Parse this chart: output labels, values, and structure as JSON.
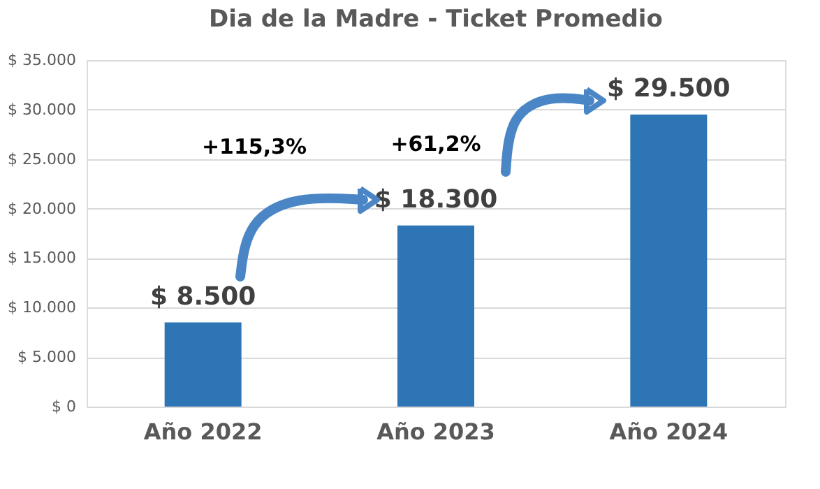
{
  "chart_data": {
    "type": "bar",
    "title": "Dia de la Madre - Ticket Promedio",
    "categories": [
      "Año 2022",
      "Año 2023",
      "Año 2024"
    ],
    "values": [
      8500,
      18300,
      29500
    ],
    "color": "#2e75b6",
    "value_labels": [
      "$ 8.500",
      "$ 18.300",
      "$ 29.500"
    ],
    "ylim": [
      0,
      35000
    ],
    "yticks": [
      {
        "value": 0,
        "label": "$ 0"
      },
      {
        "value": 5000,
        "label": "$ 5.000"
      },
      {
        "value": 10000,
        "label": "$ 10.000"
      },
      {
        "value": 15000,
        "label": "$ 15.000"
      },
      {
        "value": 20000,
        "label": "$ 20.000"
      },
      {
        "value": 25000,
        "label": "$ 25.000"
      },
      {
        "value": 30000,
        "label": "$ 30.000"
      },
      {
        "value": 35000,
        "label": "$ 35.000"
      }
    ],
    "annotations": [
      "+115,3%",
      "+61,2%"
    ],
    "grid": true,
    "legend": false
  }
}
